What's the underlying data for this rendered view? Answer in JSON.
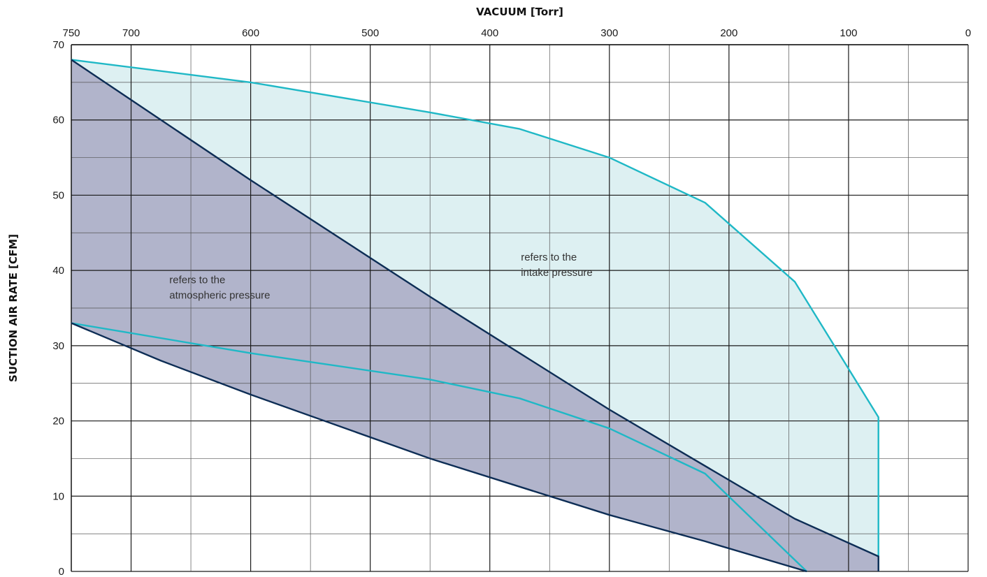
{
  "chart_data": {
    "type": "area",
    "xlabel": "VACUUM  [Torr]",
    "ylabel": "SUCTION AIR RATE  [CFM]",
    "x_axis_position": "top",
    "x_reversed": true,
    "xlim": [
      750,
      0
    ],
    "ylim": [
      0,
      70
    ],
    "xticks": [
      750,
      700,
      600,
      500,
      400,
      300,
      200,
      100,
      0
    ],
    "yticks": [
      0,
      10,
      20,
      30,
      40,
      50,
      60,
      70
    ],
    "grid": true,
    "series": [
      {
        "kind": "intake-upper",
        "color": "#1fb8c6",
        "x": [
          750,
          600,
          450,
          375,
          300,
          220,
          145,
          75,
          75
        ],
        "y": [
          68,
          65,
          61,
          58.8,
          55,
          49,
          38.5,
          20.5,
          0
        ]
      },
      {
        "kind": "intake-lower",
        "color": "#1fb8c6",
        "x": [
          750,
          600,
          450,
          375,
          300,
          220,
          135
        ],
        "y": [
          33,
          29,
          25.5,
          23,
          19,
          13,
          0
        ]
      },
      {
        "kind": "atmospheric-upper",
        "color": "#0d2d55",
        "x": [
          750,
          600,
          450,
          300,
          145,
          75,
          75
        ],
        "y": [
          68,
          52,
          36.5,
          21.5,
          7,
          2,
          0
        ]
      },
      {
        "kind": "atmospheric-lower",
        "color": "#0d2d55",
        "x": [
          750,
          675,
          600,
          450,
          300,
          220,
          135
        ],
        "y": [
          33,
          28,
          23.5,
          15,
          7.5,
          4,
          0
        ]
      }
    ],
    "fill_colors": {
      "intake": "#ddf0f2",
      "atmospheric": "#b1b4cb"
    },
    "annotations": [
      {
        "text": [
          "refers to the",
          "atmospheric pressure"
        ],
        "x": 668,
        "y": 38.3
      },
      {
        "text": [
          "refers to the",
          "intake pressure"
        ],
        "x": 374,
        "y": 41.3
      }
    ]
  }
}
